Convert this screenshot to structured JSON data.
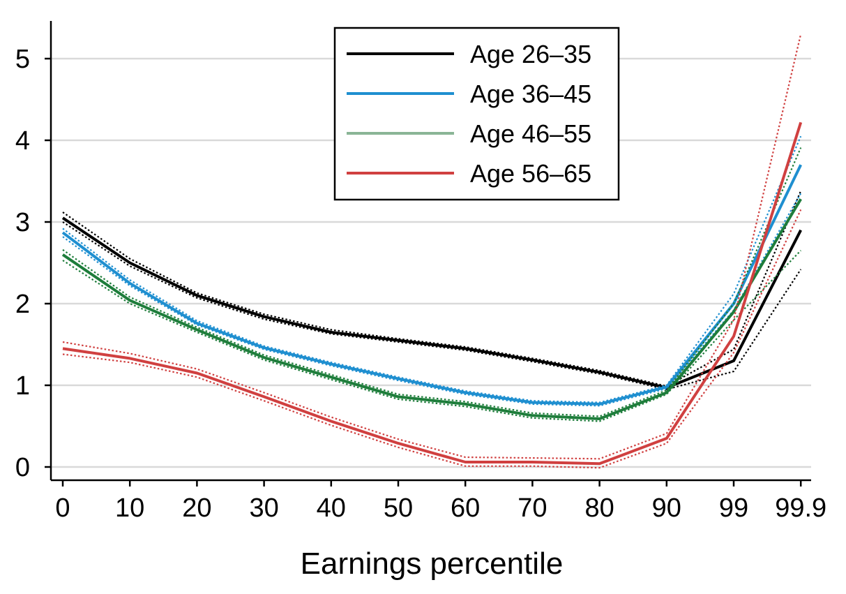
{
  "chart_data": {
    "type": "line",
    "title": "",
    "xlabel": "Earnings percentile",
    "ylabel": "",
    "categories": [
      "0",
      "10",
      "20",
      "30",
      "40",
      "50",
      "60",
      "70",
      "80",
      "90",
      "99",
      "99.9"
    ],
    "yticks": [
      "0",
      "1",
      "2",
      "3",
      "4",
      "5"
    ],
    "ylim": [
      -0.15,
      5.45
    ],
    "grid": true,
    "legend_position": "top-center",
    "series": [
      {
        "name": "Age 26–35",
        "color": "#000000",
        "values": [
          3.05,
          2.5,
          2.1,
          1.84,
          1.65,
          1.55,
          1.45,
          1.31,
          1.16,
          0.97,
          1.3,
          2.9
        ],
        "ci_lower": [
          3.0,
          2.46,
          2.07,
          1.81,
          1.63,
          1.53,
          1.43,
          1.29,
          1.14,
          0.95,
          1.17,
          2.42
        ],
        "ci_upper": [
          3.12,
          2.55,
          2.13,
          1.87,
          1.68,
          1.57,
          1.47,
          1.33,
          1.18,
          0.99,
          1.44,
          3.38
        ]
      },
      {
        "name": "Age 36–45",
        "color": "#1f8fd0",
        "values": [
          2.87,
          2.25,
          1.76,
          1.46,
          1.26,
          1.08,
          0.91,
          0.79,
          0.77,
          0.98,
          2.0,
          3.7
        ],
        "ci_lower": [
          2.82,
          2.22,
          1.74,
          1.44,
          1.24,
          1.06,
          0.89,
          0.77,
          0.75,
          0.96,
          1.92,
          3.35
        ],
        "ci_upper": [
          2.92,
          2.29,
          1.79,
          1.48,
          1.28,
          1.1,
          0.93,
          0.81,
          0.79,
          1.0,
          2.12,
          4.05
        ]
      },
      {
        "name": "Age 46–55",
        "color": "#8ab596",
        "line_color": "#1e7d3b",
        "values": [
          2.6,
          2.04,
          1.68,
          1.34,
          1.1,
          0.86,
          0.77,
          0.63,
          0.59,
          0.91,
          1.9,
          3.28
        ],
        "ci_lower": [
          2.53,
          2.0,
          1.65,
          1.31,
          1.07,
          0.83,
          0.74,
          0.6,
          0.56,
          0.89,
          1.8,
          2.65
        ],
        "ci_upper": [
          2.66,
          2.08,
          1.71,
          1.37,
          1.13,
          0.89,
          0.8,
          0.66,
          0.62,
          0.94,
          2.0,
          3.91
        ]
      },
      {
        "name": "Age 56–65",
        "color": "#d04040",
        "values": [
          1.45,
          1.33,
          1.15,
          0.86,
          0.56,
          0.29,
          0.06,
          0.06,
          0.04,
          0.35,
          1.6,
          4.22
        ],
        "ci_lower": [
          1.38,
          1.28,
          1.1,
          0.81,
          0.51,
          0.24,
          0.01,
          0.01,
          -0.01,
          0.29,
          1.4,
          3.15
        ],
        "ci_upper": [
          1.53,
          1.39,
          1.2,
          0.91,
          0.61,
          0.34,
          0.12,
          0.11,
          0.1,
          0.41,
          1.8,
          5.3
        ]
      }
    ]
  }
}
